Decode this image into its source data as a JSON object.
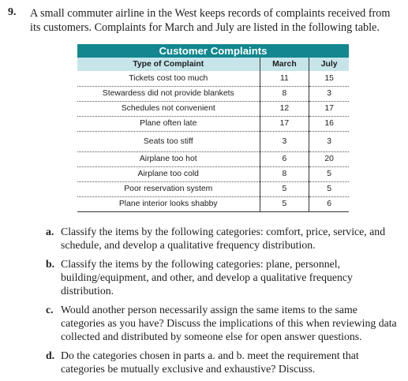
{
  "problem": {
    "number": "9.",
    "intro": "A small commuter airline in the West keeps records of complaints received from its customers. Complaints for March and July are listed in the following table."
  },
  "table": {
    "title": "Customer Complaints",
    "headers": [
      "Type of Complaint",
      "March",
      "July"
    ],
    "rows": [
      [
        "Tickets cost too much",
        "11",
        "15"
      ],
      [
        "Stewardess did not provide blankets",
        "8",
        "3"
      ],
      [
        "Schedules not convenient",
        "12",
        "17"
      ],
      [
        "Plane often late",
        "17",
        "16"
      ],
      [
        "Seats too stiff",
        "3",
        "3"
      ],
      [
        "Airplane too hot",
        "6",
        "20"
      ],
      [
        "Airplane too cold",
        "8",
        "5"
      ],
      [
        "Poor reservation system",
        "5",
        "5"
      ],
      [
        "Plane interior looks shabby",
        "5",
        "6"
      ]
    ]
  },
  "parts": [
    {
      "label": "a.",
      "text": "Classify the items by the following categories: comfort, price, service, and schedule, and develop a qualitative frequency distribution."
    },
    {
      "label": "b.",
      "text": "Classify the items by the following categories: plane, personnel, building/equipment, and other, and develop a qualitative frequency distribution."
    },
    {
      "label": "c.",
      "text": "Would another person necessarily assign the same items to the same categories as you have? Discuss the implications of this when reviewing data collected and distributed by someone else for open answer questions."
    },
    {
      "label": "d.",
      "text": "Do the categories chosen in parts a. and b. meet the requirement that categories be mutually exclusive and exhaustive? Discuss."
    }
  ]
}
